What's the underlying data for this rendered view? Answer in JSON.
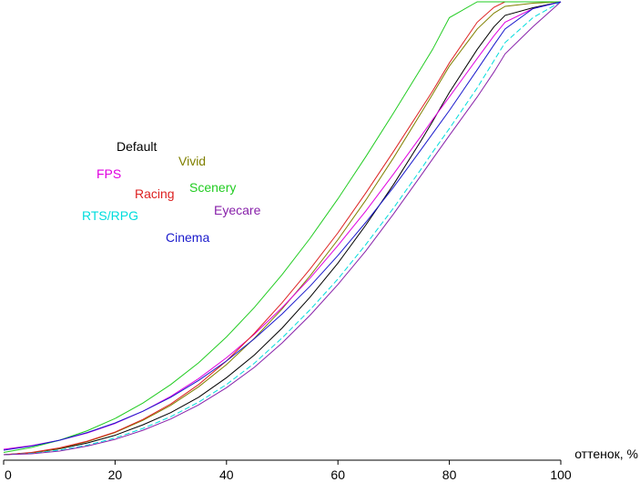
{
  "chart_data": {
    "type": "line",
    "xlabel": "оттенок, %",
    "ylabel": "",
    "xlim": [
      0,
      100
    ],
    "ylim": [
      0,
      100
    ],
    "x_ticks": [
      0,
      20,
      40,
      60,
      80,
      100
    ],
    "grid": false,
    "legend": "left-center",
    "x": [
      0,
      5,
      10,
      15,
      20,
      25,
      30,
      35,
      40,
      45,
      50,
      55,
      60,
      65,
      70,
      75,
      77,
      80,
      85,
      88,
      90,
      95,
      100
    ],
    "series": [
      {
        "name": "Default",
        "color": "#000000",
        "values": [
          0,
          0.4,
          1.3,
          2.6,
          4.3,
          6.6,
          9.3,
          12.7,
          17.0,
          22.0,
          28.0,
          34.8,
          42.3,
          50.7,
          59.7,
          69.5,
          73.6,
          80.0,
          89.5,
          94.5,
          97.0,
          98.7,
          100
        ]
      },
      {
        "name": "Vivid",
        "color": "#808000",
        "values": [
          0,
          0.4,
          1.4,
          2.9,
          4.9,
          7.6,
          10.9,
          15.0,
          19.9,
          25.7,
          32.2,
          39.5,
          47.5,
          56.2,
          65.6,
          75.6,
          79.6,
          85.8,
          94.0,
          97.5,
          99.0,
          99.7,
          100
        ]
      },
      {
        "name": "FPS",
        "color": "#e000e0",
        "values": [
          1.2,
          2.0,
          3.2,
          4.8,
          6.9,
          9.6,
          12.9,
          16.8,
          21.4,
          26.6,
          32.5,
          39.0,
          46.2,
          53.8,
          62.0,
          70.5,
          74.0,
          79.0,
          87.5,
          92.5,
          95.5,
          98.5,
          100
        ]
      },
      {
        "name": "Racing",
        "color": "#dd2222",
        "values": [
          0,
          0.5,
          1.5,
          3.0,
          5.0,
          7.8,
          11.2,
          15.5,
          20.7,
          26.8,
          33.6,
          41.0,
          49.0,
          57.8,
          67.0,
          76.5,
          80.3,
          86.5,
          95.5,
          98.8,
          100,
          100,
          100
        ]
      },
      {
        "name": "Scenery",
        "color": "#22cc22",
        "values": [
          0.5,
          1.6,
          3.2,
          5.3,
          8.0,
          11.4,
          15.5,
          20.3,
          26.0,
          32.5,
          39.8,
          47.8,
          56.5,
          65.8,
          75.5,
          85.5,
          89.5,
          96.5,
          100,
          100,
          100,
          100,
          100
        ]
      },
      {
        "name": "RTS/RPG",
        "color": "#00dddd",
        "values": [
          0,
          0.3,
          1.0,
          2.1,
          3.7,
          5.8,
          8.4,
          11.6,
          15.5,
          20.2,
          25.8,
          32.0,
          38.8,
          46.4,
          54.5,
          63.2,
          66.8,
          72.0,
          81.0,
          87.0,
          91.0,
          96.5,
          100
        ]
      },
      {
        "name": "Eyecare",
        "color": "#8822aa",
        "values": [
          0,
          0.2,
          0.8,
          1.9,
          3.4,
          5.4,
          7.9,
          11.0,
          14.8,
          19.3,
          24.7,
          30.8,
          37.6,
          45.0,
          53.2,
          61.8,
          65.3,
          70.5,
          79.0,
          84.5,
          88.5,
          94.5,
          100
        ]
      },
      {
        "name": "Cinema",
        "color": "#1a1acc",
        "values": [
          1.0,
          1.9,
          3.2,
          4.9,
          7.0,
          9.6,
          12.7,
          16.4,
          20.7,
          25.6,
          31.1,
          37.2,
          44.0,
          51.3,
          59.1,
          67.5,
          70.9,
          76.0,
          85.0,
          90.5,
          94.0,
          98.5,
          100
        ]
      }
    ],
    "legend_items": [
      {
        "name": "Default",
        "color": "#000000"
      },
      {
        "name": "Vivid",
        "color": "#808000"
      },
      {
        "name": "FPS",
        "color": "#e000e0"
      },
      {
        "name": "Scenery",
        "color": "#22cc22"
      },
      {
        "name": "Racing",
        "color": "#dd2222"
      },
      {
        "name": "Eyecare",
        "color": "#8822aa"
      },
      {
        "name": "RTS/RPG",
        "color": "#00dddd"
      },
      {
        "name": "Cinema",
        "color": "#1a1acc"
      }
    ]
  }
}
